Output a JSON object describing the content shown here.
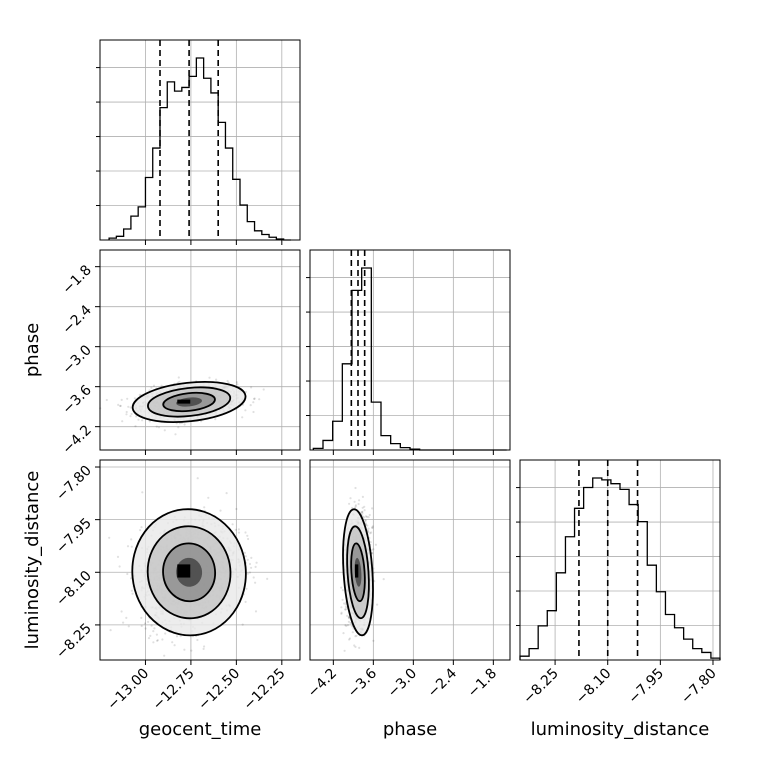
{
  "chart_data": {
    "type": "corner",
    "parameters": [
      "geocent_time",
      "phase",
      "luminosity_distance"
    ],
    "ranges": {
      "geocent_time": [
        -13.25,
        -12.15
      ],
      "phase": [
        -4.55,
        -1.55
      ],
      "luminosity_distance": [
        -8.35,
        -7.78
      ]
    },
    "ticks": {
      "geocent_time": [
        {
          "value": -13.0,
          "label": "−13.00"
        },
        {
          "value": -12.75,
          "label": "−12.75"
        },
        {
          "value": -12.5,
          "label": "−12.50"
        },
        {
          "value": -12.25,
          "label": "−12.25"
        }
      ],
      "phase": [
        {
          "value": -4.2,
          "label": "−4.2"
        },
        {
          "value": -3.6,
          "label": "−3.6"
        },
        {
          "value": -3.0,
          "label": "−3.0"
        },
        {
          "value": -2.4,
          "label": "−2.4"
        },
        {
          "value": -1.8,
          "label": "−1.8"
        }
      ],
      "luminosity_distance": [
        {
          "value": -8.25,
          "label": "−8.25"
        },
        {
          "value": -8.1,
          "label": "−8.10"
        },
        {
          "value": -7.95,
          "label": "−7.95"
        },
        {
          "value": -7.8,
          "label": "−7.80"
        }
      ]
    },
    "quantiles": {
      "geocent_time": [
        -12.92,
        -12.76,
        -12.6
      ],
      "phase": [
        -3.93,
        -3.83,
        -3.73
      ],
      "luminosity_distance": [
        -8.182,
        -8.1,
        -8.015
      ]
    },
    "histograms": {
      "geocent_time": {
        "edges_range": [
          -13.2,
          -12.2
        ],
        "counts": [
          0.01,
          0.02,
          0.06,
          0.13,
          0.18,
          0.34,
          0.5,
          0.72,
          0.86,
          0.81,
          0.83,
          0.89,
          0.99,
          0.88,
          0.8,
          0.64,
          0.5,
          0.33,
          0.19,
          0.1,
          0.05,
          0.03,
          0.015,
          0.005,
          0.0
        ]
      },
      "phase": {
        "edges_range": [
          -4.5,
          -1.6
        ],
        "counts": [
          0.01,
          0.06,
          0.18,
          0.54,
          1.0,
          1.14,
          0.3,
          0.09,
          0.04,
          0.015,
          0.005,
          0.0,
          0.0,
          0.0,
          0.0,
          0.0,
          0.0,
          0.0,
          0.0,
          0.0
        ]
      },
      "luminosity_distance": {
        "edges_range": [
          -8.35,
          -7.78
        ],
        "counts": [
          0.02,
          0.06,
          0.18,
          0.26,
          0.46,
          0.65,
          0.8,
          0.91,
          0.96,
          0.95,
          0.93,
          0.9,
          0.82,
          0.73,
          0.5,
          0.36,
          0.24,
          0.17,
          0.11,
          0.06,
          0.04,
          0.01
        ]
      }
    },
    "pair_means": {
      "phase_vs_geocent_time": {
        "x": -12.76,
        "y": -3.83
      },
      "luminosity_distance_vs_geocent_time": {
        "x": -12.76,
        "y": -8.1
      },
      "luminosity_distance_vs_phase": {
        "x": -3.83,
        "y": -8.1
      }
    },
    "grid": true,
    "quantile_line_style": "dashed",
    "color": "#000000"
  }
}
